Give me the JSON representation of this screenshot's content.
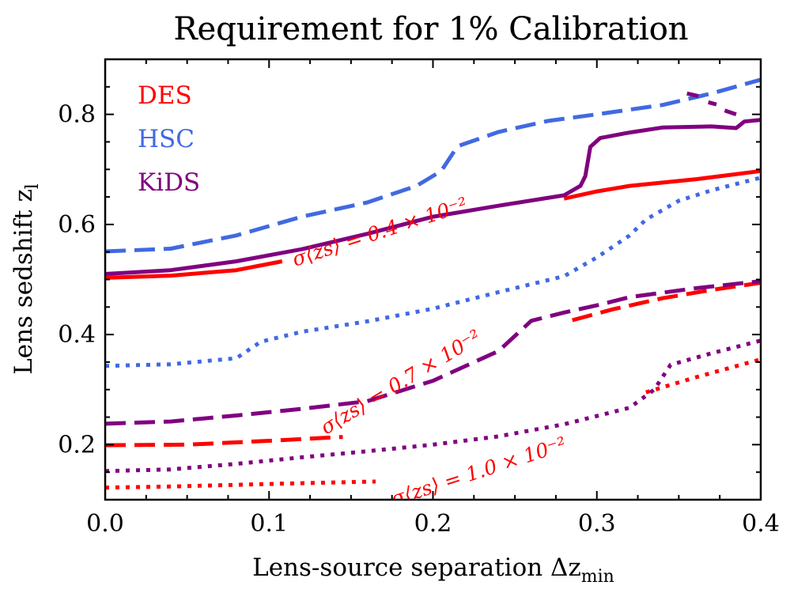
{
  "chart_data": {
    "type": "line",
    "title": "Requirement for 1% Calibration",
    "xlabel": "Lens-source separation Δz",
    "xlabel_sub": "min",
    "ylabel": "Lens sedshift z",
    "ylabel_sub": "l",
    "xlim": [
      0.0,
      0.4
    ],
    "ylim": [
      0.1,
      0.9
    ],
    "x_ticks": [
      0.0,
      0.1,
      0.2,
      0.3,
      0.4
    ],
    "x_tick_labels": [
      "0.0",
      "0.1",
      "0.2",
      "0.3",
      "0.4"
    ],
    "y_ticks": [
      0.2,
      0.4,
      0.6,
      0.8
    ],
    "y_tick_labels": [
      "0.2",
      "0.4",
      "0.6",
      "0.8"
    ],
    "grid": false,
    "legend_placement": "top-left",
    "legend": [
      {
        "name": "DES",
        "color": "#ff0000"
      },
      {
        "name": "HSC",
        "color": "#4169e1"
      },
      {
        "name": "KiDS",
        "color": "#800080"
      }
    ],
    "contour_labels": [
      {
        "text": "σ⟨zs⟩ = 0.4 × 10⁻²",
        "color": "#ff0000"
      },
      {
        "text": "σ⟨zs⟩ = 0.7 × 10⁻²",
        "color": "#ff0000"
      },
      {
        "text": "σ⟨zs⟩ = 1.0 × 10⁻²",
        "color": "#ff0000"
      }
    ],
    "series": [
      {
        "name": "DES",
        "level": "0.4",
        "color": "#ff0000",
        "dash": "solid",
        "segments": [
          [
            [
              0.0,
              0.503
            ],
            [
              0.04,
              0.507
            ],
            [
              0.08,
              0.517
            ],
            [
              0.108,
              0.533
            ]
          ],
          [
            [
              0.28,
              0.647
            ],
            [
              0.3,
              0.66
            ],
            [
              0.32,
              0.67
            ],
            [
              0.36,
              0.682
            ],
            [
              0.4,
              0.697
            ]
          ]
        ]
      },
      {
        "name": "HSC",
        "level": "0.4",
        "color": "#4169e1",
        "dash": "dashed",
        "segments": [
          [
            [
              0.0,
              0.551
            ],
            [
              0.04,
              0.556
            ],
            [
              0.08,
              0.58
            ],
            [
              0.12,
              0.614
            ],
            [
              0.16,
              0.64
            ],
            [
              0.19,
              0.67
            ],
            [
              0.205,
              0.697
            ],
            [
              0.215,
              0.742
            ],
            [
              0.24,
              0.768
            ],
            [
              0.27,
              0.788
            ],
            [
              0.3,
              0.8
            ],
            [
              0.34,
              0.817
            ],
            [
              0.37,
              0.838
            ],
            [
              0.4,
              0.863
            ]
          ]
        ]
      },
      {
        "name": "KiDS",
        "level": "0.4",
        "color": "#800080",
        "dash": "solid",
        "segments": [
          [
            [
              0.0,
              0.51
            ],
            [
              0.04,
              0.517
            ],
            [
              0.08,
              0.533
            ],
            [
              0.12,
              0.555
            ],
            [
              0.16,
              0.583
            ],
            [
              0.2,
              0.614
            ],
            [
              0.24,
              0.634
            ],
            [
              0.28,
              0.653
            ],
            [
              0.29,
              0.67
            ],
            [
              0.293,
              0.688
            ],
            [
              0.296,
              0.741
            ],
            [
              0.302,
              0.757
            ],
            [
              0.32,
              0.767
            ],
            [
              0.34,
              0.776
            ],
            [
              0.37,
              0.778
            ],
            [
              0.385,
              0.775
            ],
            [
              0.39,
              0.787
            ],
            [
              0.4,
              0.79
            ]
          ],
          [
            [
              0.355,
              0.838
            ],
            [
              0.362,
              0.833
            ]
          ],
          [
            [
              0.368,
              0.822
            ],
            [
              0.373,
              0.818
            ]
          ],
          [
            [
              0.378,
              0.807
            ],
            [
              0.385,
              0.8
            ]
          ]
        ]
      },
      {
        "name": "DES",
        "level": "0.7",
        "color": "#ff0000",
        "dash": "dashed",
        "segments": [
          [
            [
              0.0,
              0.199
            ],
            [
              0.05,
              0.2
            ],
            [
              0.1,
              0.207
            ],
            [
              0.145,
              0.214
            ]
          ],
          [
            [
              0.285,
              0.426
            ],
            [
              0.31,
              0.446
            ],
            [
              0.34,
              0.466
            ],
            [
              0.37,
              0.481
            ],
            [
              0.4,
              0.494
            ]
          ]
        ]
      },
      {
        "name": "HSC",
        "level": "0.7",
        "color": "#4169e1",
        "dash": "dotted",
        "segments": [
          [
            [
              0.0,
              0.343
            ],
            [
              0.04,
              0.346
            ],
            [
              0.08,
              0.357
            ],
            [
              0.095,
              0.387
            ],
            [
              0.12,
              0.405
            ],
            [
              0.16,
              0.424
            ],
            [
              0.2,
              0.447
            ],
            [
              0.24,
              0.477
            ],
            [
              0.28,
              0.506
            ],
            [
              0.3,
              0.54
            ],
            [
              0.32,
              0.58
            ],
            [
              0.33,
              0.609
            ],
            [
              0.35,
              0.643
            ],
            [
              0.37,
              0.662
            ],
            [
              0.4,
              0.685
            ]
          ]
        ]
      },
      {
        "name": "KiDS",
        "level": "0.7",
        "color": "#800080",
        "dash": "dashed",
        "segments": [
          [
            [
              0.0,
              0.238
            ],
            [
              0.04,
              0.242
            ],
            [
              0.08,
              0.253
            ],
            [
              0.12,
              0.265
            ],
            [
              0.16,
              0.279
            ],
            [
              0.2,
              0.316
            ],
            [
              0.24,
              0.37
            ],
            [
              0.26,
              0.425
            ],
            [
              0.28,
              0.44
            ],
            [
              0.3,
              0.453
            ],
            [
              0.32,
              0.468
            ],
            [
              0.36,
              0.484
            ],
            [
              0.4,
              0.497
            ]
          ]
        ]
      },
      {
        "name": "DES",
        "level": "1.0",
        "color": "#ff0000",
        "dash": "dotted",
        "segments": [
          [
            [
              0.0,
              0.122
            ],
            [
              0.04,
              0.124
            ],
            [
              0.08,
              0.127
            ],
            [
              0.12,
              0.13
            ],
            [
              0.165,
              0.133
            ]
          ],
          [
            [
              0.33,
              0.295
            ],
            [
              0.36,
              0.322
            ],
            [
              0.4,
              0.355
            ]
          ]
        ]
      },
      {
        "name": "HSC",
        "level": "1.0",
        "color": "#4169e1",
        "dash": "dotted",
        "segments": []
      },
      {
        "name": "KiDS",
        "level": "1.0",
        "color": "#800080",
        "dash": "dotted",
        "segments": [
          [
            [
              0.0,
              0.152
            ],
            [
              0.04,
              0.155
            ],
            [
              0.08,
              0.165
            ],
            [
              0.12,
              0.177
            ],
            [
              0.16,
              0.188
            ],
            [
              0.2,
              0.2
            ],
            [
              0.24,
              0.215
            ],
            [
              0.28,
              0.237
            ],
            [
              0.32,
              0.267
            ],
            [
              0.335,
              0.3
            ],
            [
              0.345,
              0.345
            ],
            [
              0.37,
              0.366
            ],
            [
              0.4,
              0.389
            ]
          ]
        ]
      }
    ]
  }
}
